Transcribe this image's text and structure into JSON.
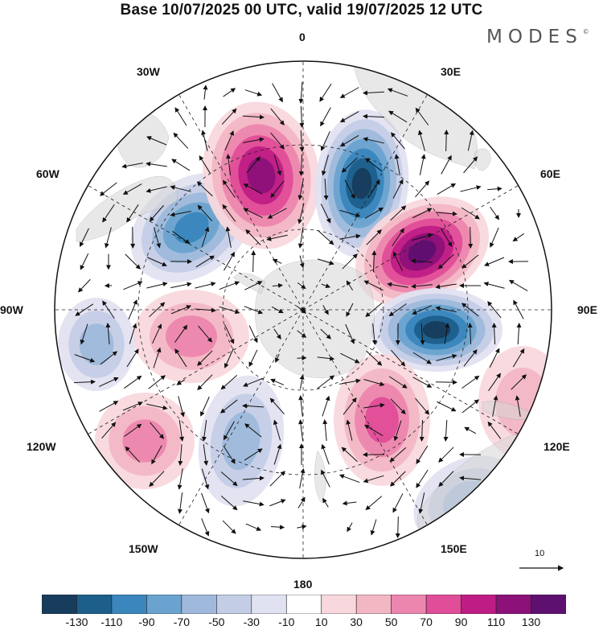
{
  "title": "Base 10/07/2025 00 UTC, valid 19/07/2025 12 UTC",
  "brand": {
    "name": "MODES",
    "mark": "©"
  },
  "longitude_labels": {
    "lon_0": "0",
    "lon_30E": "30E",
    "lon_60E": "60E",
    "lon_90E": "90E",
    "lon_120E": "120E",
    "lon_150E": "150E",
    "lon_180": "180",
    "lon_150W": "150W",
    "lon_120W": "120W",
    "lon_90W": "90W",
    "lon_60W": "60W",
    "lon_30W": "30W"
  },
  "reference_vector": {
    "label": "10"
  },
  "colorbar": {
    "ticks": [
      "-130",
      "-110",
      "-90",
      "-70",
      "-50",
      "-30",
      "-10",
      "10",
      "30",
      "50",
      "70",
      "90",
      "110",
      "130"
    ],
    "colors": [
      "#173c5c",
      "#1c5f8b",
      "#3a86bd",
      "#6aa3cf",
      "#9eb9db",
      "#c4cde6",
      "#e1e2f1",
      "#ffffff",
      "#f8d8dd",
      "#f3b7c4",
      "#ec86ae",
      "#e04d98",
      "#bf1d86",
      "#8c1178",
      "#5e1070"
    ]
  },
  "anomaly_centers": [
    {
      "name": "anomaly-neg-60w",
      "level": -90
    },
    {
      "name": "anomaly-pos-20w",
      "level": 110
    },
    {
      "name": "anomaly-neg-15e",
      "level": -130
    },
    {
      "name": "anomaly-pos-55e",
      "level": 130
    },
    {
      "name": "anomaly-neg-95e",
      "level": -130
    },
    {
      "name": "anomaly-pos-150e",
      "level": 70
    },
    {
      "name": "anomaly-neg-150w",
      "level": -50
    },
    {
      "name": "anomaly-pos-110w",
      "level": 50
    },
    {
      "name": "anomaly-pos-80w",
      "level": 50
    },
    {
      "name": "anomaly-neg-90w",
      "level": -50
    },
    {
      "name": "anomaly-neg-135e",
      "level": -50
    },
    {
      "name": "anomaly-pos-110e",
      "level": 30
    }
  ]
}
